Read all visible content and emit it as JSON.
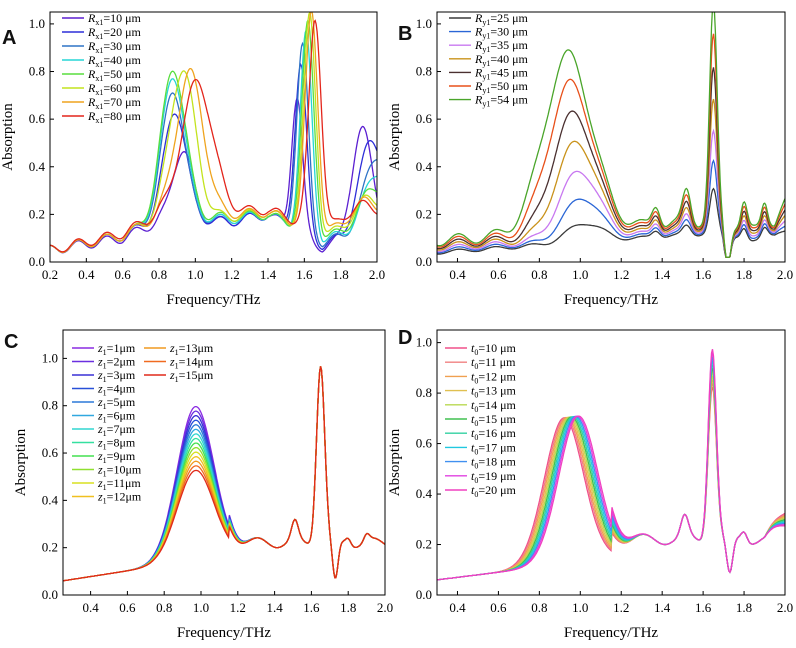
{
  "chart_data": [
    {
      "panel": "A",
      "type": "line",
      "xlabel": "Frequency/THz",
      "ylabel": "Absorption",
      "xlim": [
        0.2,
        2.0
      ],
      "ylim": [
        0.0,
        1.05
      ],
      "xticks": [
        "0.2",
        "0.4",
        "0.6",
        "0.8",
        "1.0",
        "1.2",
        "1.4",
        "1.6",
        "1.8",
        "2.0"
      ],
      "yticks": [
        "0.0",
        "0.2",
        "0.4",
        "0.6",
        "0.8",
        "1.0"
      ],
      "legend": "top-left",
      "series": [
        {
          "sym": "R",
          "sub": "x1",
          "val": "=10 μm",
          "color": "#5b1fd1",
          "baseline": [
            [
              0.2,
              0.05
            ],
            [
              0.6,
              0.1
            ],
            [
              0.8,
              0.17
            ],
            [
              1.2,
              0.17
            ],
            [
              1.4,
              0.2
            ],
            [
              1.7,
              0.06
            ],
            [
              2.0,
              0.1
            ]
          ],
          "peaks": [
            [
              0.93,
              0.3,
              0.055
            ],
            [
              1.56,
              0.57,
              0.03
            ],
            [
              1.92,
              0.46,
              0.06
            ]
          ]
        },
        {
          "sym": "R",
          "sub": "x1",
          "val": "=20 μm",
          "color": "#2d2fd8",
          "baseline": [
            [
              0.2,
              0.05
            ],
            [
              0.6,
              0.11
            ],
            [
              0.8,
              0.18
            ],
            [
              1.2,
              0.17
            ],
            [
              1.4,
              0.2
            ],
            [
              1.7,
              0.07
            ],
            [
              2.0,
              0.14
            ]
          ],
          "peaks": [
            [
              0.89,
              0.46,
              0.06
            ],
            [
              1.58,
              0.7,
              0.032
            ],
            [
              1.97,
              0.38,
              0.07
            ]
          ]
        },
        {
          "sym": "R",
          "sub": "x1",
          "val": "=30 μm",
          "color": "#2e73c6",
          "baseline": [
            [
              0.2,
              0.05
            ],
            [
              0.6,
              0.11
            ],
            [
              0.8,
              0.18
            ],
            [
              1.2,
              0.18
            ],
            [
              1.4,
              0.2
            ],
            [
              1.7,
              0.08
            ],
            [
              2.0,
              0.15
            ]
          ],
          "peaks": [
            [
              0.88,
              0.54,
              0.062
            ],
            [
              1.59,
              0.78,
              0.032
            ],
            [
              2.0,
              0.3,
              0.07
            ]
          ]
        },
        {
          "sym": "R",
          "sub": "x1",
          "val": "=40 μm",
          "color": "#27d5d5",
          "baseline": [
            [
              0.2,
              0.05
            ],
            [
              0.6,
              0.11
            ],
            [
              0.8,
              0.18
            ],
            [
              1.2,
              0.18
            ],
            [
              1.4,
              0.2
            ],
            [
              1.7,
              0.09
            ],
            [
              2.0,
              0.16
            ]
          ],
          "peaks": [
            [
              0.88,
              0.6,
              0.064
            ],
            [
              1.61,
              0.83,
              0.032
            ],
            [
              2.0,
              0.22,
              0.07
            ]
          ]
        },
        {
          "sym": "R",
          "sub": "x1",
          "val": "=50 μm",
          "color": "#58de3f",
          "baseline": [
            [
              0.2,
              0.05
            ],
            [
              0.6,
              0.11
            ],
            [
              0.8,
              0.18
            ],
            [
              1.2,
              0.19
            ],
            [
              1.4,
              0.2
            ],
            [
              1.7,
              0.1
            ],
            [
              2.0,
              0.17
            ]
          ],
          "peaks": [
            [
              0.88,
              0.63,
              0.066
            ],
            [
              1.62,
              0.87,
              0.033
            ],
            [
              1.98,
              0.15,
              0.07
            ]
          ]
        },
        {
          "sym": "R",
          "sub": "x1",
          "val": "=60 μm",
          "color": "#c3e31e",
          "baseline": [
            [
              0.2,
              0.05
            ],
            [
              0.6,
              0.11
            ],
            [
              0.8,
              0.19
            ],
            [
              1.2,
              0.19
            ],
            [
              1.4,
              0.21
            ],
            [
              1.7,
              0.11
            ],
            [
              2.0,
              0.18
            ]
          ],
          "peaks": [
            [
              0.93,
              0.62,
              0.07
            ],
            [
              1.63,
              0.9,
              0.033
            ],
            [
              1.95,
              0.1,
              0.07
            ]
          ]
        },
        {
          "sym": "R",
          "sub": "x1",
          "val": "=70 μm",
          "color": "#efa41e",
          "baseline": [
            [
              0.2,
              0.05
            ],
            [
              0.6,
              0.11
            ],
            [
              0.8,
              0.19
            ],
            [
              1.2,
              0.2
            ],
            [
              1.4,
              0.21
            ],
            [
              1.7,
              0.12
            ],
            [
              2.0,
              0.19
            ]
          ],
          "peaks": [
            [
              0.97,
              0.6,
              0.075
            ],
            [
              1.64,
              0.91,
              0.034
            ],
            [
              1.93,
              0.08,
              0.07
            ]
          ]
        },
        {
          "sym": "R",
          "sub": "x1",
          "val": "=80 μm",
          "color": "#e3251b",
          "baseline": [
            [
              0.2,
              0.05
            ],
            [
              0.6,
              0.12
            ],
            [
              0.8,
              0.2
            ],
            [
              1.2,
              0.21
            ],
            [
              1.4,
              0.22
            ],
            [
              1.7,
              0.13
            ],
            [
              2.0,
              0.2
            ]
          ],
          "peaks": [
            [
              1.01,
              0.55,
              0.085
            ],
            [
              1.66,
              0.88,
              0.034
            ],
            [
              1.9,
              0.06,
              0.07
            ]
          ]
        }
      ]
    },
    {
      "panel": "B",
      "type": "line",
      "xlabel": "Frequency/THz",
      "ylabel": "Absorption",
      "xlim": [
        0.3,
        2.0
      ],
      "ylim": [
        0.0,
        1.05
      ],
      "xticks": [
        "0.4",
        "0.6",
        "0.8",
        "1.0",
        "1.2",
        "1.4",
        "1.6",
        "1.8",
        "2.0"
      ],
      "yticks": [
        "0.0",
        "0.2",
        "0.4",
        "0.6",
        "0.8",
        "1.0"
      ],
      "legend": "top-left",
      "series": [
        {
          "sym": "R",
          "sub": "y1",
          "val": "=25 μm",
          "color": "#3a3a3a",
          "scale": 0.0
        },
        {
          "sym": "R",
          "sub": "y1",
          "val": "=30 μm",
          "color": "#2a66d6",
          "scale": 0.15
        },
        {
          "sym": "R",
          "sub": "y1",
          "val": "=35 μm",
          "color": "#c878f0",
          "scale": 0.31
        },
        {
          "sym": "R",
          "sub": "y1",
          "val": "=40 μm",
          "color": "#c9921a",
          "scale": 0.48
        },
        {
          "sym": "R",
          "sub": "y1",
          "val": "=45 μm",
          "color": "#4a3030",
          "scale": 0.65
        },
        {
          "sym": "R",
          "sub": "y1",
          "val": "=50 μm",
          "color": "#e8501a",
          "scale": 0.83
        },
        {
          "sym": "R",
          "sub": "y1",
          "val": "=54 μm",
          "color": "#4aa52a",
          "scale": 1.0
        }
      ]
    },
    {
      "panel": "C",
      "type": "line",
      "xlabel": "Frequency/THz",
      "ylabel": "Absorption",
      "xlim": [
        0.25,
        2.0
      ],
      "ylim": [
        0.0,
        1.12
      ],
      "xticks": [
        "0.4",
        "0.6",
        "0.8",
        "1.0",
        "1.2",
        "1.4",
        "1.6",
        "1.8",
        "2.0"
      ],
      "yticks": [
        "0.0",
        "0.2",
        "0.4",
        "0.6",
        "0.8",
        "1.0"
      ],
      "legend": "top-left",
      "series": [
        {
          "sym": "z",
          "sub": "1",
          "val": "=1μm",
          "color": "#8a2be2"
        },
        {
          "sym": "z",
          "sub": "1",
          "val": "=2μm",
          "color": "#6a2fe0"
        },
        {
          "sym": "z",
          "sub": "1",
          "val": "=3μm",
          "color": "#3a30d6"
        },
        {
          "sym": "z",
          "sub": "1",
          "val": "=4μm",
          "color": "#2850d8"
        },
        {
          "sym": "z",
          "sub": "1",
          "val": "=5μm",
          "color": "#2b78d8"
        },
        {
          "sym": "z",
          "sub": "1",
          "val": "=6μm",
          "color": "#30a8e0"
        },
        {
          "sym": "z",
          "sub": "1",
          "val": "=7μm",
          "color": "#30d6d0"
        },
        {
          "sym": "z",
          "sub": "1",
          "val": "=8μm",
          "color": "#34e0a0"
        },
        {
          "sym": "z",
          "sub": "1",
          "val": "=9μm",
          "color": "#44e050"
        },
        {
          "sym": "z",
          "sub": "1",
          "val": "=10μm",
          "color": "#90e030"
        },
        {
          "sym": "z",
          "sub": "1",
          "val": "=11μm",
          "color": "#d8e020"
        },
        {
          "sym": "z",
          "sub": "1",
          "val": "=12μm",
          "color": "#f0c020"
        },
        {
          "sym": "z",
          "sub": "1",
          "val": "=13μm",
          "color": "#f09a20"
        },
        {
          "sym": "z",
          "sub": "1",
          "val": "=14μm",
          "color": "#f06a20"
        },
        {
          "sym": "z",
          "sub": "1",
          "val": "=15μm",
          "color": "#e02a1a"
        }
      ]
    },
    {
      "panel": "D",
      "type": "line",
      "xlabel": "Frequency/THz",
      "ylabel": "Absorption",
      "xlim": [
        0.3,
        2.0
      ],
      "ylim": [
        0.0,
        1.05
      ],
      "xticks": [
        "0.4",
        "0.6",
        "0.8",
        "1.0",
        "1.2",
        "1.4",
        "1.6",
        "1.8",
        "2.0"
      ],
      "yticks": [
        "0.0",
        "0.2",
        "0.4",
        "0.6",
        "0.8",
        "1.0"
      ],
      "legend": "top-left",
      "series": [
        {
          "sym": "t",
          "sub": "0",
          "val": "=10 μm",
          "color": "#f0508a"
        },
        {
          "sym": "t",
          "sub": "0",
          "val": "=11 μm",
          "color": "#f08080"
        },
        {
          "sym": "t",
          "sub": "0",
          "val": "=12 μm",
          "color": "#f0a050"
        },
        {
          "sym": "t",
          "sub": "0",
          "val": "=13 μm",
          "color": "#e0c050"
        },
        {
          "sym": "t",
          "sub": "0",
          "val": "=14 μm",
          "color": "#b8d850"
        },
        {
          "sym": "t",
          "sub": "0",
          "val": "=15 μm",
          "color": "#40c050"
        },
        {
          "sym": "t",
          "sub": "0",
          "val": "=16 μm",
          "color": "#30d0a0"
        },
        {
          "sym": "t",
          "sub": "0",
          "val": "=17 μm",
          "color": "#20c8e0"
        },
        {
          "sym": "t",
          "sub": "0",
          "val": "=18 μm",
          "color": "#4090f0"
        },
        {
          "sym": "t",
          "sub": "0",
          "val": "=19 μm",
          "color": "#e040e0"
        },
        {
          "sym": "t",
          "sub": "0",
          "val": "=20 μm",
          "color": "#f040c0"
        }
      ]
    }
  ]
}
